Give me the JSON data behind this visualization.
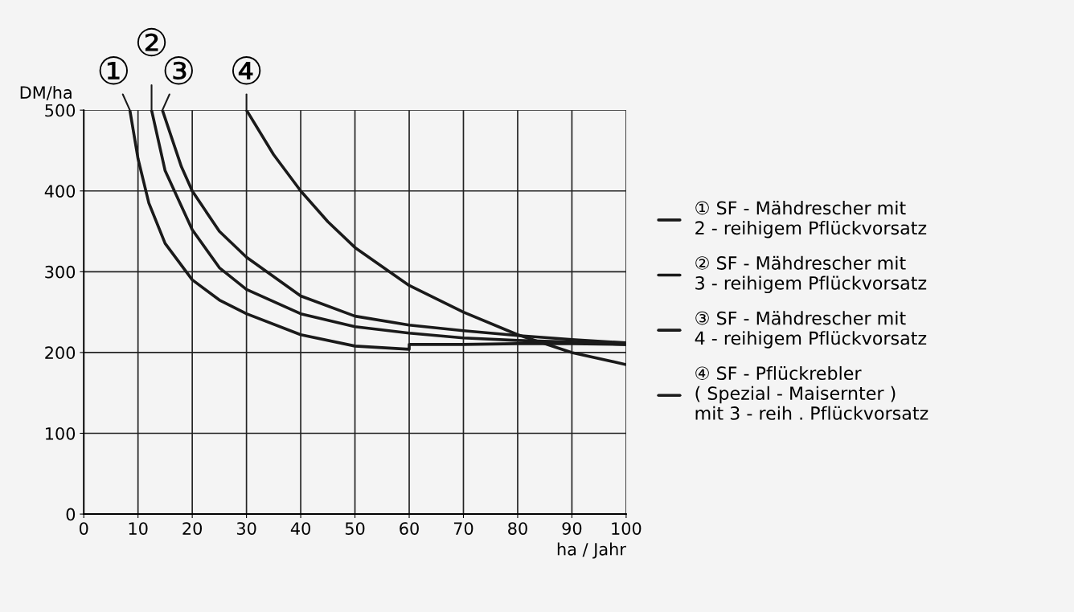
{
  "chart_data": {
    "type": "line",
    "xlabel": "ha / Jahr",
    "ylabel": "DM/ha",
    "xlim": [
      0,
      100
    ],
    "ylim": [
      0,
      500
    ],
    "xticks": [
      0,
      10,
      20,
      30,
      40,
      50,
      60,
      70,
      80,
      90,
      100
    ],
    "yticks": [
      0,
      100,
      200,
      300,
      400,
      500
    ],
    "grid": true,
    "legend": "right",
    "marker": "none",
    "line_style": "solid",
    "series": [
      {
        "name": "① SF - Mähdrescher mit\n2 - reihigem Pflückvorsatz",
        "color": "#1a1a1a",
        "x": [
          8.5,
          10,
          12,
          15,
          20,
          25,
          30,
          40,
          50,
          60,
          60,
          70,
          80,
          90,
          100
        ],
        "values": [
          500,
          440,
          385,
          335,
          290,
          265,
          248,
          222,
          208,
          204,
          210,
          210,
          211,
          211,
          210
        ]
      },
      {
        "name": "② SF - Mähdrescher mit\n3 - reihigem Pflückvorsatz",
        "color": "#1a1a1a",
        "x": [
          12.5,
          15,
          20,
          25,
          30,
          40,
          50,
          60,
          70,
          80,
          90,
          100
        ],
        "values": [
          500,
          425,
          352,
          305,
          278,
          248,
          232,
          224,
          218,
          215,
          213,
          210
        ]
      },
      {
        "name": "③ SF - Mähdrescher mit\n4 - reihigem Pflückvorsatz",
        "color": "#1a1a1a",
        "x": [
          14.5,
          18,
          20,
          25,
          30,
          40,
          50,
          60,
          70,
          80,
          90,
          100
        ],
        "values": [
          500,
          430,
          400,
          350,
          318,
          270,
          245,
          234,
          227,
          221,
          216,
          212
        ]
      },
      {
        "name": "④ SF - Pflückrebler\n( Spezial - Maisernter )\nmit 3 - reih . Pflückvorsatz",
        "color": "#1a1a1a",
        "x": [
          30,
          35,
          40,
          45,
          50,
          60,
          70,
          80,
          90,
          100
        ],
        "values": [
          500,
          445,
          400,
          362,
          330,
          283,
          250,
          222,
          200,
          185
        ]
      }
    ],
    "annotations": [
      {
        "text": "①",
        "x": 8.5,
        "y": 500
      },
      {
        "text": "②",
        "x": 12.5,
        "y": 500
      },
      {
        "text": "③",
        "x": 14.5,
        "y": 500
      },
      {
        "text": "④",
        "x": 30,
        "y": 500
      }
    ]
  }
}
